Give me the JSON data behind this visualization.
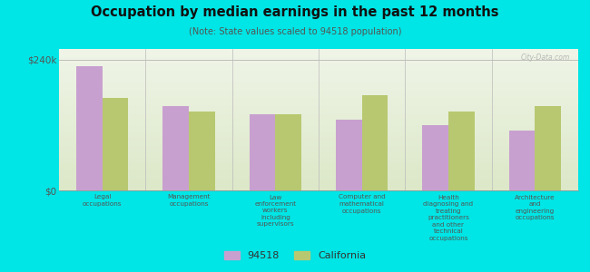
{
  "title": "Occupation by median earnings in the past 12 months",
  "subtitle": "(Note: State values scaled to 94518 population)",
  "background_color": "#00e5e5",
  "plot_bg_top": "#dce8c8",
  "plot_bg_bottom": "#f0f5e8",
  "ytick_label": "$240k",
  "y_max": 240000,
  "categories": [
    "Legal\noccupations",
    "Management\noccupations",
    "Law\nenforcement\nworkers\nincluding\nsupervisors",
    "Computer and\nmathematical\noccupations",
    "Health\ndiagnosing and\ntreating\npractitioners\nand other\ntechnical\noccupations",
    "Architecture\nand\nengineering\noccupations"
  ],
  "values_94518": [
    228000,
    155000,
    140000,
    130000,
    120000,
    110000
  ],
  "values_california": [
    170000,
    145000,
    140000,
    175000,
    145000,
    155000
  ],
  "color_94518": "#c8a0d0",
  "color_california": "#b8c870",
  "legend_labels": [
    "94518",
    "California"
  ],
  "watermark": "City-Data.com"
}
